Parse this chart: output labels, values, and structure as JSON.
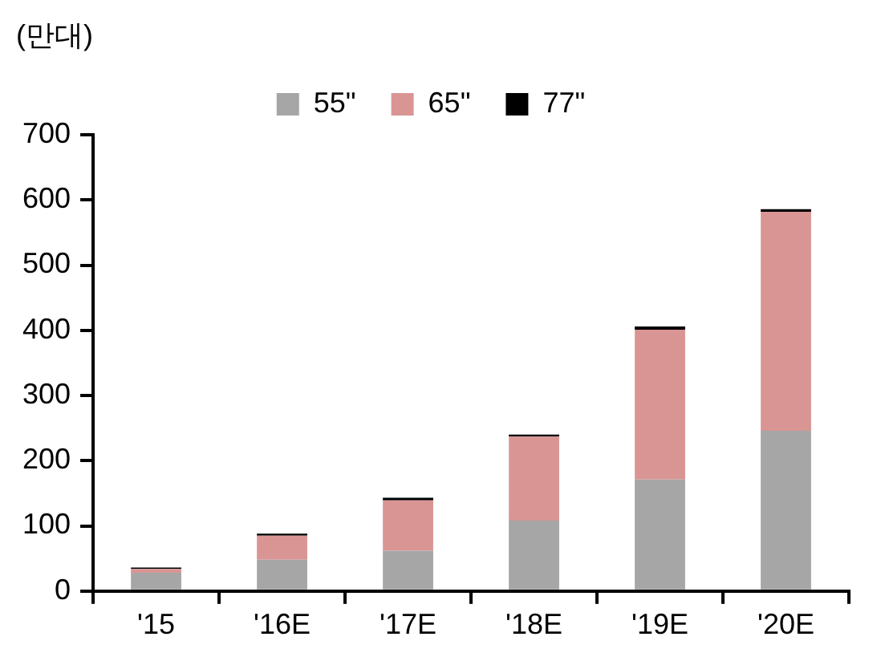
{
  "chart_data": {
    "type": "bar",
    "ylabel": "(만대)",
    "stacked": true,
    "legend": "top",
    "grid": false,
    "categories": [
      "'15",
      "'16E",
      "'17E",
      "'18E",
      "'19E",
      "'20E"
    ],
    "series": [
      {
        "name": "55\"",
        "color": "#a6a6a6",
        "values": [
          28,
          48,
          62,
          108,
          171,
          246
        ]
      },
      {
        "name": "65\"",
        "color": "#d99594",
        "values": [
          6,
          37,
          77,
          129,
          230,
          336
        ]
      },
      {
        "name": "77\"",
        "color": "#000000",
        "values": [
          2,
          3,
          4,
          3,
          5,
          4
        ]
      }
    ],
    "ylim": [
      0,
      700
    ],
    "yticks": [
      0,
      100,
      200,
      300,
      400,
      500,
      600,
      700
    ]
  }
}
